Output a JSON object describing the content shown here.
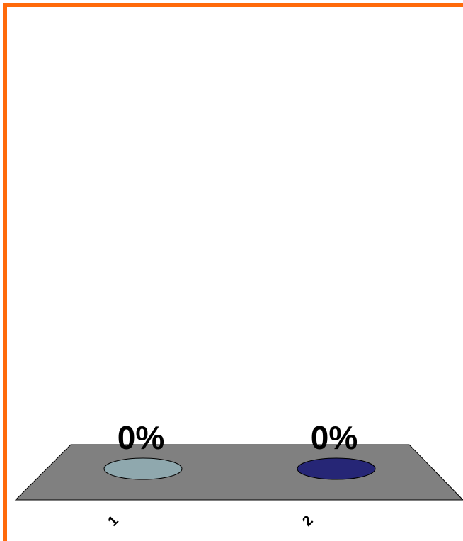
{
  "colors": {
    "border": "#ff6a0a",
    "floor": "#808080",
    "series": [
      "#8fa8ae",
      "#262676"
    ]
  },
  "chart_data": {
    "type": "bar",
    "categories": [
      "1",
      "2"
    ],
    "values": [
      0,
      0
    ],
    "data_labels": [
      "0%",
      "0%"
    ],
    "ylim": [
      0,
      100
    ],
    "grid": false,
    "legend": "none",
    "style": "3d-cylinder"
  }
}
